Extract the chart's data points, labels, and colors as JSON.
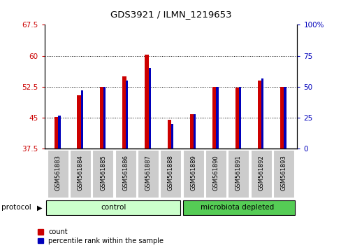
{
  "title": "GDS3921 / ILMN_1219653",
  "samples": [
    "GSM561883",
    "GSM561884",
    "GSM561885",
    "GSM561886",
    "GSM561887",
    "GSM561888",
    "GSM561889",
    "GSM561890",
    "GSM561891",
    "GSM561892",
    "GSM561893"
  ],
  "red_values": [
    45.2,
    50.5,
    52.5,
    55.0,
    60.2,
    44.5,
    45.8,
    52.5,
    52.3,
    54.0,
    52.5
  ],
  "blue_values_pct": [
    27,
    47,
    50,
    55,
    65,
    20,
    28,
    50,
    50,
    57,
    50
  ],
  "ylim_left": [
    37.5,
    67.5
  ],
  "ylim_right": [
    0,
    100
  ],
  "yticks_left": [
    37.5,
    45.0,
    52.5,
    60.0,
    67.5
  ],
  "yticks_right": [
    0,
    25,
    50,
    75,
    100
  ],
  "ytick_labels_left": [
    "37.5",
    "45",
    "52.5",
    "60",
    "67.5"
  ],
  "ytick_labels_right": [
    "0",
    "25",
    "50",
    "75",
    "100%"
  ],
  "grid_values": [
    45.0,
    52.5,
    60.0
  ],
  "red_color": "#cc0000",
  "blue_color": "#0000bb",
  "control_samples": 6,
  "control_label": "control",
  "microbiota_label": "microbiota depleted",
  "protocol_label": "protocol",
  "legend_count": "count",
  "legend_percentile": "percentile rank within the sample",
  "control_color": "#ccffcc",
  "microbiota_color": "#55cc55",
  "background_gray": "#cccccc"
}
